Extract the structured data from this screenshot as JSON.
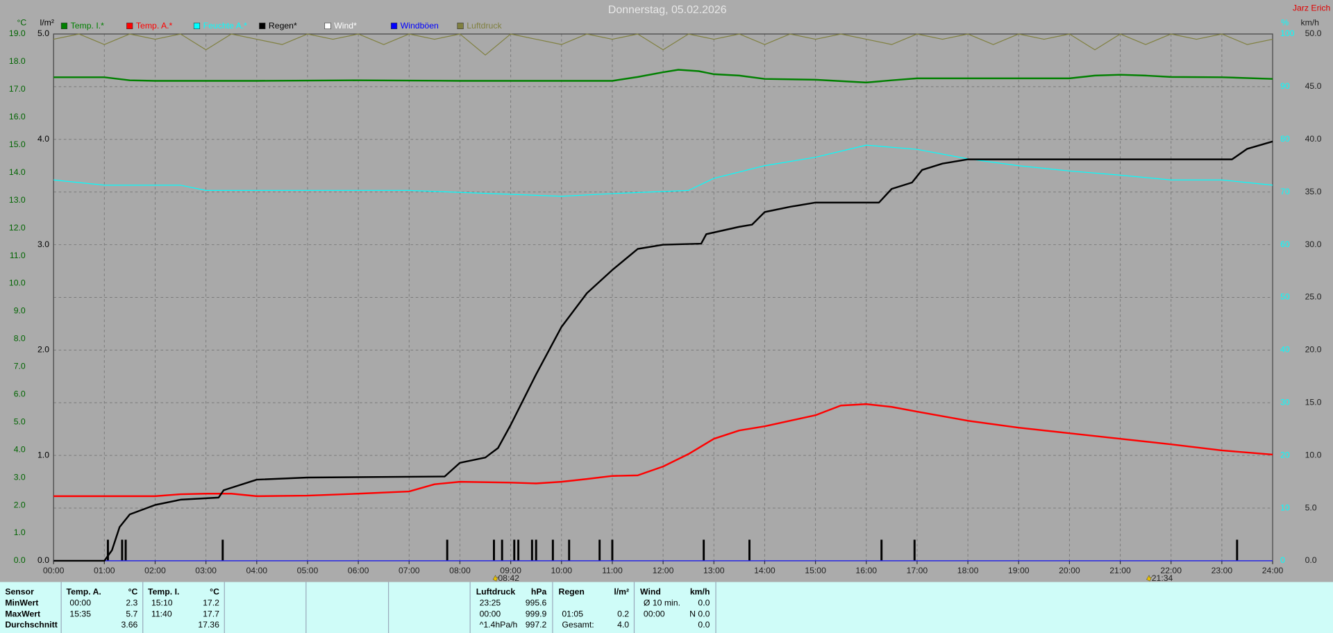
{
  "chart_data": {
    "type": "line",
    "title": "Donnerstag, 05.02.2026",
    "author": "Jarz Erich",
    "xlim": [
      0,
      24
    ],
    "xticks": [
      {
        "value": 0,
        "label": "00:00"
      },
      {
        "value": 1,
        "label": "01:00"
      },
      {
        "value": 2,
        "label": "02:00"
      },
      {
        "value": 3,
        "label": "03:00"
      },
      {
        "value": 4,
        "label": "04:00"
      },
      {
        "value": 5,
        "label": "05:00"
      },
      {
        "value": 6,
        "label": "06:00"
      },
      {
        "value": 7,
        "label": "07:00"
      },
      {
        "value": 8,
        "label": "08:00"
      },
      {
        "value": 9,
        "label": "09:00"
      },
      {
        "value": 10,
        "label": "10:00"
      },
      {
        "value": 11,
        "label": "11:00"
      },
      {
        "value": 12,
        "label": "12:00"
      },
      {
        "value": 13,
        "label": "13:00"
      },
      {
        "value": 14,
        "label": "14:00"
      },
      {
        "value": 15,
        "label": "15:00"
      },
      {
        "value": 16,
        "label": "16:00"
      },
      {
        "value": 17,
        "label": "17:00"
      },
      {
        "value": 18,
        "label": "18:00"
      },
      {
        "value": 19,
        "label": "19:00"
      },
      {
        "value": 20,
        "label": "20:00"
      },
      {
        "value": 21,
        "label": "21:00"
      },
      {
        "value": 22,
        "label": "22:00"
      },
      {
        "value": 23,
        "label": "23:00"
      },
      {
        "value": 24,
        "label": "24:00"
      }
    ],
    "grid": true,
    "axes": [
      {
        "unit": "°C",
        "side": "left",
        "color": "#006400",
        "lim": [
          0,
          19
        ],
        "ticks": [
          {
            "value": 0,
            "label": "0.0"
          },
          {
            "value": 1,
            "label": "1.0"
          },
          {
            "value": 2,
            "label": "2.0"
          },
          {
            "value": 3,
            "label": "3.0"
          },
          {
            "value": 4,
            "label": "4.0"
          },
          {
            "value": 5,
            "label": "5.0"
          },
          {
            "value": 6,
            "label": "6.0"
          },
          {
            "value": 7,
            "label": "7.0"
          },
          {
            "value": 8,
            "label": "8.0"
          },
          {
            "value": 9,
            "label": "9.0"
          },
          {
            "value": 10,
            "label": "10.0"
          },
          {
            "value": 11,
            "label": "11.0"
          },
          {
            "value": 12,
            "label": "12.0"
          },
          {
            "value": 13,
            "label": "13.0"
          },
          {
            "value": 14,
            "label": "14.0"
          },
          {
            "value": 15,
            "label": "15.0"
          },
          {
            "value": 16,
            "label": "16.0"
          },
          {
            "value": 17,
            "label": "17.0"
          },
          {
            "value": 18,
            "label": "18.0"
          },
          {
            "value": 19,
            "label": "19.0"
          }
        ]
      },
      {
        "unit": "l/m²",
        "side": "left",
        "color": "#000000",
        "lim": [
          0,
          5
        ],
        "ticks": [
          {
            "value": 0,
            "label": "0.0"
          },
          {
            "value": 1,
            "label": "1.0"
          },
          {
            "value": 2,
            "label": "2.0"
          },
          {
            "value": 3,
            "label": "3.0"
          },
          {
            "value": 4,
            "label": "4.0"
          },
          {
            "value": 5,
            "label": "5.0"
          }
        ]
      },
      {
        "unit": "%",
        "side": "right",
        "color": "#00ffff",
        "lim": [
          0,
          100
        ],
        "ticks": [
          0,
          10,
          20,
          30,
          40,
          50,
          60,
          70,
          80,
          90,
          100
        ]
      },
      {
        "unit": "km/h",
        "side": "right",
        "color": "#202020",
        "lim": [
          0,
          50
        ],
        "ticks": [
          {
            "value": 0,
            "label": "0.0"
          },
          {
            "value": 5,
            "label": "5.0"
          },
          {
            "value": 10,
            "label": "10.0"
          },
          {
            "value": 15,
            "label": "15.0"
          },
          {
            "value": 20,
            "label": "20.0"
          },
          {
            "value": 25,
            "label": "25.0"
          },
          {
            "value": 30,
            "label": "30.0"
          },
          {
            "value": 35,
            "label": "35.0"
          },
          {
            "value": 40,
            "label": "40.0"
          },
          {
            "value": 45,
            "label": "45.0"
          },
          {
            "value": 50,
            "label": "50.0"
          }
        ]
      }
    ],
    "series": [
      {
        "name": "Temp. I.*",
        "color": "#008000",
        "axis": 0,
        "width": 2,
        "x": [
          0,
          1,
          1.5,
          2,
          4,
          6,
          8,
          10,
          11,
          11.5,
          12,
          12.3,
          12.7,
          13,
          13.5,
          14,
          15,
          15.5,
          16,
          16.5,
          17,
          18,
          19,
          20,
          20.5,
          21,
          21.5,
          22,
          23,
          24
        ],
        "values": [
          17.44,
          17.44,
          17.33,
          17.31,
          17.31,
          17.33,
          17.31,
          17.31,
          17.31,
          17.45,
          17.62,
          17.71,
          17.66,
          17.55,
          17.5,
          17.38,
          17.35,
          17.3,
          17.25,
          17.33,
          17.4,
          17.4,
          17.4,
          17.4,
          17.5,
          17.53,
          17.5,
          17.45,
          17.44,
          17.38
        ]
      },
      {
        "name": "Temp. A.*",
        "color": "#ff0000",
        "axis": 0,
        "width": 2,
        "x": [
          0,
          2,
          2.5,
          3,
          3.5,
          4,
          5,
          6,
          7,
          7.5,
          8,
          9,
          9.5,
          10,
          10.5,
          11,
          11.5,
          12,
          12.5,
          13,
          13.5,
          14,
          15,
          15.5,
          16,
          16.5,
          17,
          18,
          19,
          20,
          21,
          22,
          23,
          24
        ],
        "values": [
          2.33,
          2.33,
          2.4,
          2.42,
          2.42,
          2.33,
          2.35,
          2.42,
          2.5,
          2.76,
          2.85,
          2.82,
          2.79,
          2.85,
          2.95,
          3.06,
          3.08,
          3.4,
          3.85,
          4.4,
          4.7,
          4.85,
          5.25,
          5.6,
          5.65,
          5.55,
          5.38,
          5.05,
          4.8,
          4.6,
          4.4,
          4.2,
          3.98,
          3.83
        ]
      },
      {
        "name": "Feuchte A.*",
        "color": "#00ffff",
        "axis": 2,
        "width": 1,
        "x": [
          0,
          1,
          2.5,
          3,
          7,
          10,
          11,
          12.5,
          13,
          14,
          15,
          16,
          17,
          18,
          19,
          20,
          21,
          22,
          23,
          24
        ],
        "values": [
          72.3,
          71.3,
          71.3,
          70.3,
          70.3,
          69.2,
          69.7,
          70.3,
          72.6,
          75,
          76.6,
          78.9,
          78.1,
          76.3,
          75,
          74,
          73.2,
          72.3,
          72.3,
          71.3
        ]
      },
      {
        "name": "Regen*",
        "color": "#000000",
        "axis": 1,
        "width": 2,
        "x": [
          0,
          1,
          1.15,
          1.3,
          1.5,
          2,
          2.5,
          3.25,
          3.35,
          4,
          5,
          7.7,
          8,
          8.5,
          8.75,
          9,
          9.5,
          10,
          10.5,
          11,
          11.5,
          12,
          12.75,
          12.85,
          13.5,
          13.75,
          14,
          14.5,
          15,
          16.25,
          16.5,
          16.9,
          17.1,
          17.5,
          18,
          23.2,
          23.5,
          24
        ],
        "values": [
          0,
          0,
          0.1,
          0.32,
          0.44,
          0.53,
          0.58,
          0.6,
          0.67,
          0.77,
          0.79,
          0.8,
          0.93,
          0.98,
          1.07,
          1.29,
          1.77,
          2.22,
          2.54,
          2.76,
          2.96,
          3.0,
          3.01,
          3.1,
          3.17,
          3.19,
          3.31,
          3.36,
          3.4,
          3.4,
          3.53,
          3.59,
          3.71,
          3.77,
          3.81,
          3.81,
          3.91,
          3.98
        ]
      },
      {
        "name": "Wind*",
        "color": "#ffffff",
        "axis": 3,
        "width": 1,
        "x": [
          0,
          24
        ],
        "values": [
          0,
          0
        ]
      },
      {
        "name": "Windböen",
        "color": "#0000ff",
        "axis": 3,
        "width": 1,
        "x": [
          0,
          24
        ],
        "values": [
          0,
          0
        ]
      },
      {
        "name": "Luftdruck",
        "color": "#808040",
        "axis": 2,
        "width": 1,
        "x": [
          0,
          0.5,
          1,
          1.5,
          2,
          2.5,
          3,
          3.5,
          4,
          4.5,
          5,
          5.5,
          6,
          6.5,
          7,
          7.5,
          8,
          8.5,
          9,
          9.5,
          10,
          10.5,
          11,
          11.5,
          12,
          12.5,
          13,
          13.5,
          14,
          14.5,
          15,
          15.5,
          16,
          16.5,
          17,
          17.5,
          18,
          18.5,
          19,
          19.5,
          20,
          20.5,
          21,
          21.5,
          22,
          22.5,
          23,
          23.5,
          24
        ],
        "values": [
          99,
          100,
          98,
          100,
          99,
          100,
          97,
          100,
          99,
          98,
          100,
          99,
          100,
          98,
          100,
          99,
          100,
          96,
          100,
          99,
          98,
          100,
          99,
          100,
          97,
          100,
          99,
          100,
          98,
          100,
          99,
          100,
          99,
          98,
          100,
          99,
          100,
          98,
          100,
          99,
          100,
          97,
          100,
          98,
          100,
          99,
          100,
          98,
          99
        ]
      }
    ],
    "bars": {
      "color": "#000000",
      "axis": 1,
      "x": [
        1.07,
        1.35,
        1.42,
        3.33,
        7.75,
        8.67,
        8.83,
        9.07,
        9.15,
        9.42,
        9.5,
        9.83,
        10.15,
        10.75,
        11.0,
        12.8,
        13.7,
        16.3,
        16.95,
        23.3
      ],
      "values": [
        0.2,
        0.2,
        0.2,
        0.2,
        0.2,
        0.2,
        0.2,
        0.2,
        0.2,
        0.2,
        0.2,
        0.2,
        0.2,
        0.2,
        0.2,
        0.2,
        0.2,
        0.2,
        0.2,
        0.2
      ]
    },
    "markers": [
      {
        "x": 8.7,
        "label": "08:42"
      },
      {
        "x": 21.567,
        "label": "21:34"
      }
    ]
  },
  "table": {
    "header": [
      "Sensor",
      "Temp. A.",
      "°C",
      "Temp. I.",
      "°C",
      "Luftdruck",
      "hPa",
      "Regen",
      "l/m²",
      "Wind",
      "km/h"
    ],
    "rows": [
      [
        "MinWert",
        "00:00",
        "2.3",
        "15:10",
        "17.2",
        "23:25",
        "995.6",
        null,
        null,
        "Ø 10 min.",
        "0.0"
      ],
      [
        "MaxWert",
        "15:35",
        "5.7",
        "11:40",
        "17.7",
        "00:00",
        "999.9",
        "01:05",
        "0.2",
        "00:00",
        "N  0.0"
      ],
      [
        "Durchschnitt",
        null,
        "3.66",
        null,
        "17.36",
        "^1.4hPa/h",
        "997.2",
        "Gesamt:",
        "4.0",
        null,
        "0.0"
      ]
    ]
  }
}
